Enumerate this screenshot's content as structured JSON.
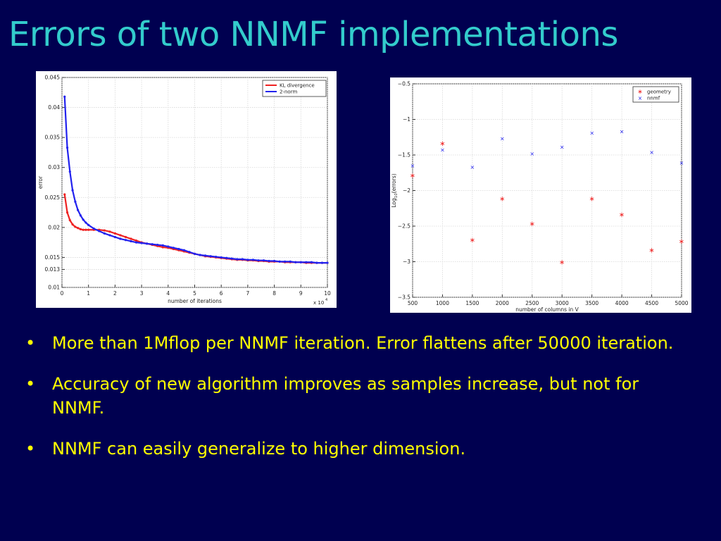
{
  "slide": {
    "title": "Errors of two NNMF implementations",
    "bullets": [
      "More than 1Mflop per NNMF iteration. Error flattens after 50000 iteration.",
      "Accuracy of new algorithm improves as samples increase, but not for NNMF.",
      "NNMF can easily generalize to higher dimension."
    ],
    "bullet_glyph": "•"
  },
  "colors": {
    "background": "#000050",
    "title": "#33cccc",
    "bullet_text": "#ffff00",
    "series_red": "#ee2222",
    "series_blue": "#2222ee"
  },
  "chart_data": [
    {
      "type": "line",
      "title": "",
      "xlabel": "number of iterations",
      "ylabel": "error",
      "x_multiplier_label": "x 10",
      "x_multiplier_exp": "4",
      "xlim": [
        0,
        10
      ],
      "ylim": [
        0.01,
        0.045
      ],
      "xticks": [
        0,
        1,
        2,
        3,
        4,
        5,
        6,
        7,
        8,
        9,
        10
      ],
      "yticks": [
        0.01,
        0.013,
        0.015,
        0.02,
        0.025,
        0.03,
        0.035,
        0.04,
        0.045
      ],
      "ytick_labels": [
        "0.01",
        "0.013",
        "0.015",
        "0.02",
        "0.025",
        "0.03",
        "0.035",
        "0.04",
        "0.045"
      ],
      "grid": true,
      "legend_position": "top-right",
      "series": [
        {
          "name": "KL divergence",
          "color": "#ee2222",
          "x": [
            0.1,
            0.2,
            0.3,
            0.4,
            0.5,
            0.6,
            0.7,
            0.8,
            0.9,
            1.0,
            1.2,
            1.4,
            1.6,
            1.8,
            2.0,
            2.2,
            2.4,
            2.6,
            2.8,
            3.0,
            3.2,
            3.4,
            3.6,
            3.8,
            4.0,
            4.2,
            4.4,
            4.6,
            4.8,
            5.0,
            5.2,
            5.4,
            5.6,
            5.8,
            6.0,
            6.2,
            6.4,
            6.6,
            6.8,
            7.0,
            7.2,
            7.4,
            7.6,
            7.8,
            8.0,
            8.2,
            8.4,
            8.6,
            8.8,
            9.0,
            9.2,
            9.4,
            9.6,
            9.8,
            10.0
          ],
          "y": [
            0.0255,
            0.0225,
            0.0212,
            0.0205,
            0.0201,
            0.0199,
            0.0197,
            0.0196,
            0.0196,
            0.0196,
            0.0196,
            0.0196,
            0.0195,
            0.0193,
            0.019,
            0.0187,
            0.0184,
            0.0181,
            0.0178,
            0.0175,
            0.0173,
            0.0171,
            0.0169,
            0.0167,
            0.0166,
            0.0164,
            0.0162,
            0.016,
            0.0158,
            0.0156,
            0.0154,
            0.0152,
            0.0151,
            0.015,
            0.0149,
            0.0148,
            0.0147,
            0.0146,
            0.0146,
            0.0145,
            0.0145,
            0.0144,
            0.0144,
            0.0143,
            0.0143,
            0.0143,
            0.0142,
            0.0142,
            0.0142,
            0.0142,
            0.0141,
            0.0141,
            0.0141,
            0.0141,
            0.0141
          ]
        },
        {
          "name": "2-norm",
          "color": "#2222ee",
          "x": [
            0.1,
            0.2,
            0.3,
            0.4,
            0.5,
            0.6,
            0.7,
            0.8,
            0.9,
            1.0,
            1.2,
            1.4,
            1.6,
            1.8,
            2.0,
            2.2,
            2.4,
            2.6,
            2.8,
            3.0,
            3.2,
            3.4,
            3.6,
            3.8,
            4.0,
            4.2,
            4.4,
            4.6,
            4.8,
            5.0,
            5.2,
            5.4,
            5.6,
            5.8,
            6.0,
            6.2,
            6.4,
            6.6,
            6.8,
            7.0,
            7.2,
            7.4,
            7.6,
            7.8,
            8.0,
            8.2,
            8.4,
            8.6,
            8.8,
            9.0,
            9.2,
            9.4,
            9.6,
            9.8,
            10.0
          ],
          "y": [
            0.0418,
            0.0333,
            0.0293,
            0.0262,
            0.0243,
            0.0229,
            0.022,
            0.0213,
            0.0208,
            0.0204,
            0.0198,
            0.0194,
            0.019,
            0.0187,
            0.0184,
            0.0181,
            0.0179,
            0.0177,
            0.0175,
            0.0174,
            0.0173,
            0.0172,
            0.0171,
            0.017,
            0.0168,
            0.0166,
            0.0164,
            0.0162,
            0.0159,
            0.0156,
            0.0154,
            0.0153,
            0.0152,
            0.0151,
            0.015,
            0.0149,
            0.0148,
            0.0147,
            0.0147,
            0.0146,
            0.0146,
            0.0145,
            0.0145,
            0.0144,
            0.0144,
            0.0143,
            0.0143,
            0.0143,
            0.0142,
            0.0142,
            0.0142,
            0.0142,
            0.0141,
            0.0141,
            0.0141
          ]
        }
      ]
    },
    {
      "type": "scatter",
      "title": "",
      "xlabel": "number of columns in V",
      "ylabel": "Log",
      "ylabel_sub": "10",
      "ylabel_suffix": "(errors)",
      "xlim": [
        500,
        5000
      ],
      "ylim": [
        -3.5,
        -0.5
      ],
      "xticks": [
        500,
        1000,
        1500,
        2000,
        2500,
        3000,
        3500,
        4000,
        4500,
        5000
      ],
      "yticks": [
        -3.5,
        -3,
        -2.5,
        -2,
        -1.5,
        -1,
        -0.5
      ],
      "ytick_labels": [
        "−3.5",
        "−3",
        "−2.5",
        "−2",
        "−1.5",
        "−1",
        "−0.5"
      ],
      "grid": true,
      "legend_position": "top-right",
      "series": [
        {
          "name": "geometry",
          "marker": "*",
          "color": "#ee2222",
          "x": [
            500,
            1000,
            1500,
            2000,
            2500,
            3000,
            3500,
            4000,
            4500,
            5000
          ],
          "y": [
            -1.78,
            -1.33,
            -2.69,
            -2.11,
            -2.46,
            -3.0,
            -2.11,
            -2.33,
            -2.83,
            -2.71
          ]
        },
        {
          "name": "nnmf",
          "marker": "x",
          "color": "#2222ee",
          "x": [
            500,
            1000,
            1500,
            2000,
            2500,
            3000,
            3500,
            4000,
            4500,
            5000
          ],
          "y": [
            -1.65,
            -1.43,
            -1.67,
            -1.27,
            -1.48,
            -1.39,
            -1.19,
            -1.17,
            -1.46,
            -1.61
          ]
        }
      ]
    }
  ]
}
